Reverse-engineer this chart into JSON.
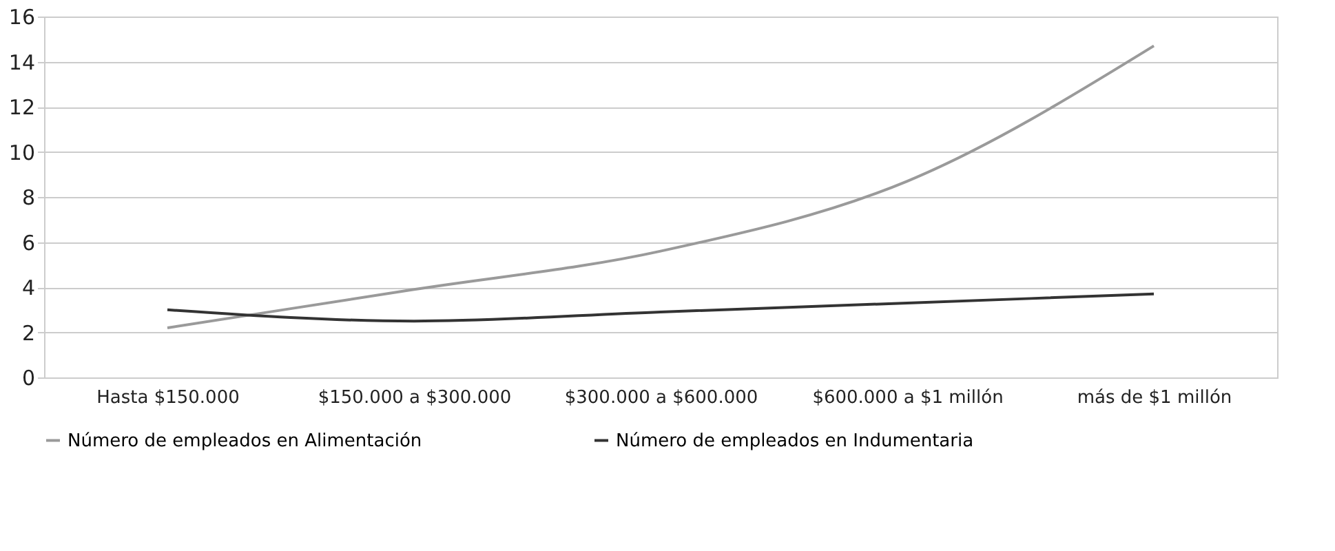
{
  "chart_data": {
    "type": "line",
    "categories": [
      "Hasta $150.000",
      "$150.000 a $300.000",
      "$300.000 a $600.000",
      "$600.000 a $1 millón",
      "más de $1 millón"
    ],
    "series": [
      {
        "name": "Número de empleados en Alimentación",
        "color": "#9a9a9a",
        "values": [
          2.2,
          3.9,
          5.6,
          8.7,
          14.7
        ]
      },
      {
        "name": "Número de empleados en Indumentaria",
        "color": "#333333",
        "values": [
          3.0,
          2.5,
          2.9,
          3.3,
          3.7
        ]
      }
    ],
    "ylim": [
      0,
      16
    ],
    "yticks": [
      0,
      2,
      4,
      6,
      8,
      10,
      12,
      14,
      16
    ],
    "grid": "y",
    "legend": "bottom",
    "marker": "none",
    "line_style": "solid"
  }
}
